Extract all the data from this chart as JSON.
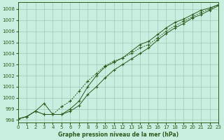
{
  "title": "Graphe pression niveau de la mer (hPa)",
  "bg_color": "#c8eee0",
  "grid_color": "#a0c8b8",
  "line_color": "#2d5a1b",
  "axis_color": "#2d5a1b",
  "xlim": [
    0,
    23
  ],
  "ylim": [
    997.8,
    1008.6
  ],
  "yticks": [
    998,
    999,
    1000,
    1001,
    1002,
    1003,
    1004,
    1005,
    1006,
    1007,
    1008
  ],
  "xticks": [
    0,
    1,
    2,
    3,
    4,
    5,
    6,
    7,
    8,
    9,
    10,
    11,
    12,
    13,
    14,
    15,
    16,
    17,
    18,
    19,
    20,
    21,
    22,
    23
  ],
  "line1_y": [
    998.1,
    998.3,
    998.8,
    999.5,
    998.5,
    998.5,
    998.8,
    999.3,
    1000.3,
    1001.0,
    1001.8,
    1002.5,
    1003.0,
    1003.5,
    1004.0,
    1004.5,
    1005.2,
    1005.8,
    1006.3,
    1006.7,
    1007.2,
    1007.5,
    1007.9,
    1008.3
  ],
  "line2_y": [
    998.1,
    998.3,
    998.8,
    998.5,
    998.5,
    998.5,
    999.0,
    999.7,
    1001.0,
    1002.0,
    1002.8,
    1003.2,
    1003.6,
    1004.2,
    1004.8,
    1005.1,
    1005.7,
    1006.3,
    1006.8,
    1007.1,
    1007.5,
    1007.9,
    1008.1,
    1008.4
  ],
  "line3_y": [
    998.1,
    998.3,
    998.8,
    998.5,
    998.5,
    999.2,
    999.7,
    1000.6,
    1001.5,
    1002.2,
    1002.9,
    1003.3,
    1003.6,
    1004.0,
    1004.5,
    1004.8,
    1005.4,
    1006.0,
    1006.5,
    1006.9,
    1007.3,
    1007.7,
    1008.0,
    1008.4
  ],
  "tick_fontsize": 5,
  "label_fontsize": 5.5,
  "lw": 0.7,
  "ms": 2.5
}
